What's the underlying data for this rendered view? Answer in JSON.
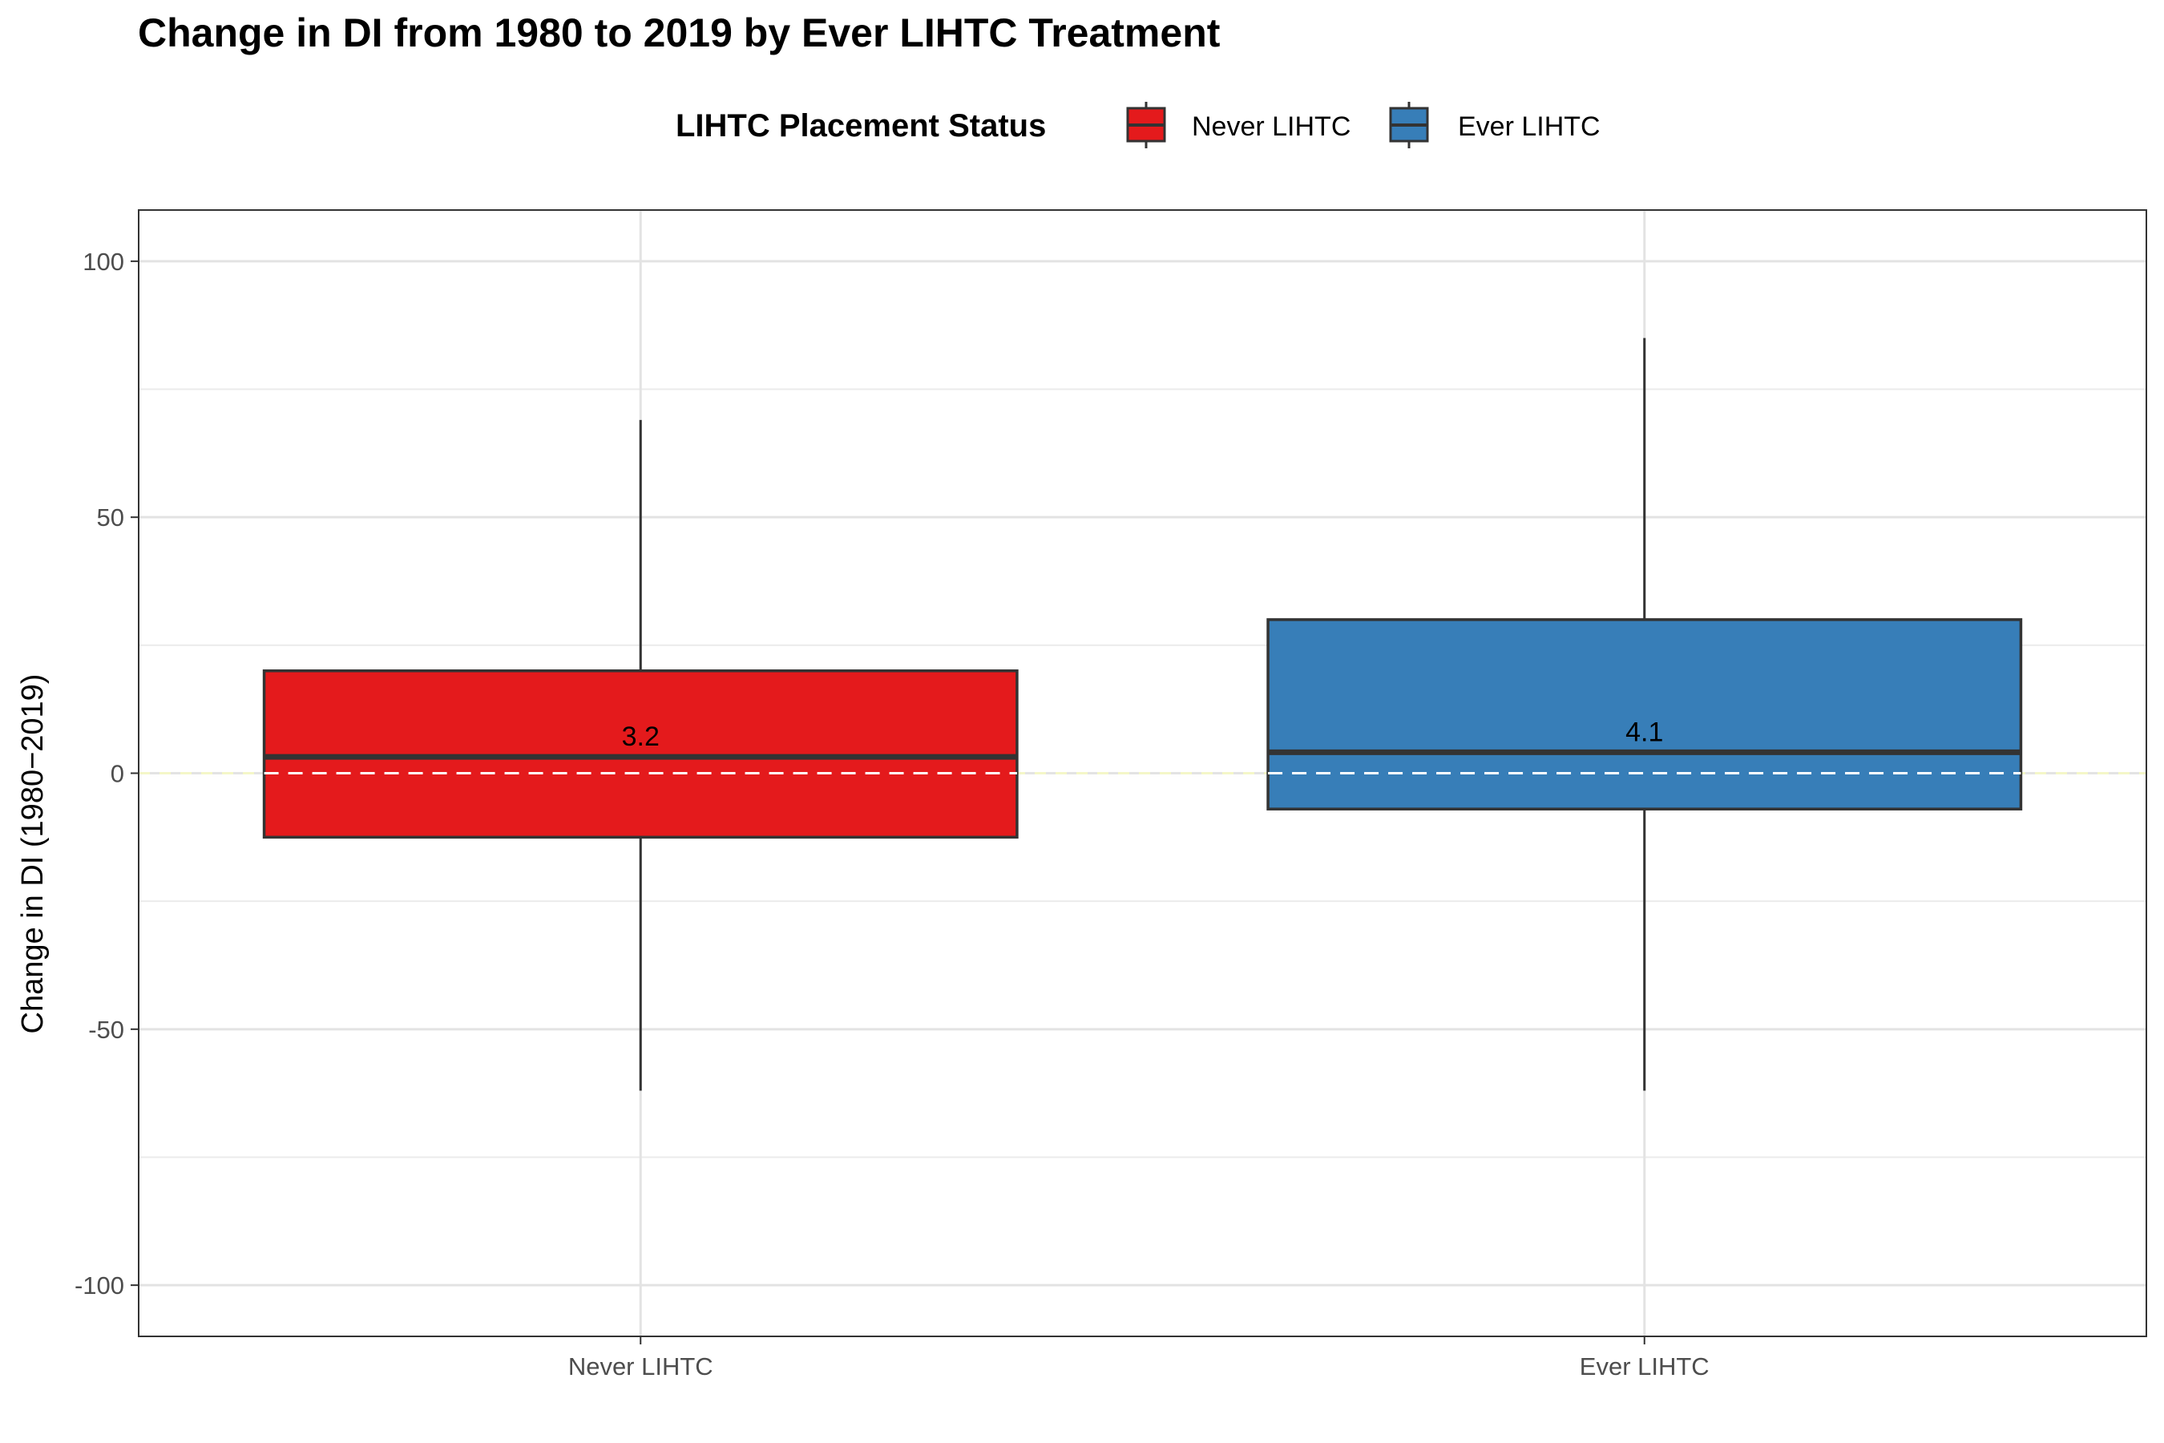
{
  "chart_data": {
    "type": "boxplot",
    "title": "Change in DI from 1980 to 2019 by Ever LIHTC Treatment",
    "xlabel": "",
    "ylabel": "Change in DI (1980−2019)",
    "ylim": [
      -110,
      110
    ],
    "y_ticks": [
      100,
      50,
      0,
      -50,
      -100
    ],
    "y_tick_labels": [
      "100",
      "50",
      "0",
      "-50",
      "-100"
    ],
    "reference_line": {
      "y": 0,
      "style": "dashed",
      "color": "#ffffff"
    },
    "legend": {
      "title": "LIHTC Placement Status",
      "position": "top",
      "entries": [
        "Never LIHTC",
        "Ever LIHTC"
      ]
    },
    "categories": [
      "Never LIHTC",
      "Ever LIHTC"
    ],
    "series": [
      {
        "name": "Never LIHTC",
        "color": "#e41a1c",
        "whisker_low": -62,
        "q1": -12.5,
        "median": 3.2,
        "q3": 20,
        "whisker_high": 69,
        "median_label": "3.2"
      },
      {
        "name": "Ever LIHTC",
        "color": "#377eb8",
        "whisker_low": -62,
        "q1": -7,
        "median": 4.1,
        "q3": 30,
        "whisker_high": 85,
        "median_label": "4.1"
      }
    ]
  }
}
